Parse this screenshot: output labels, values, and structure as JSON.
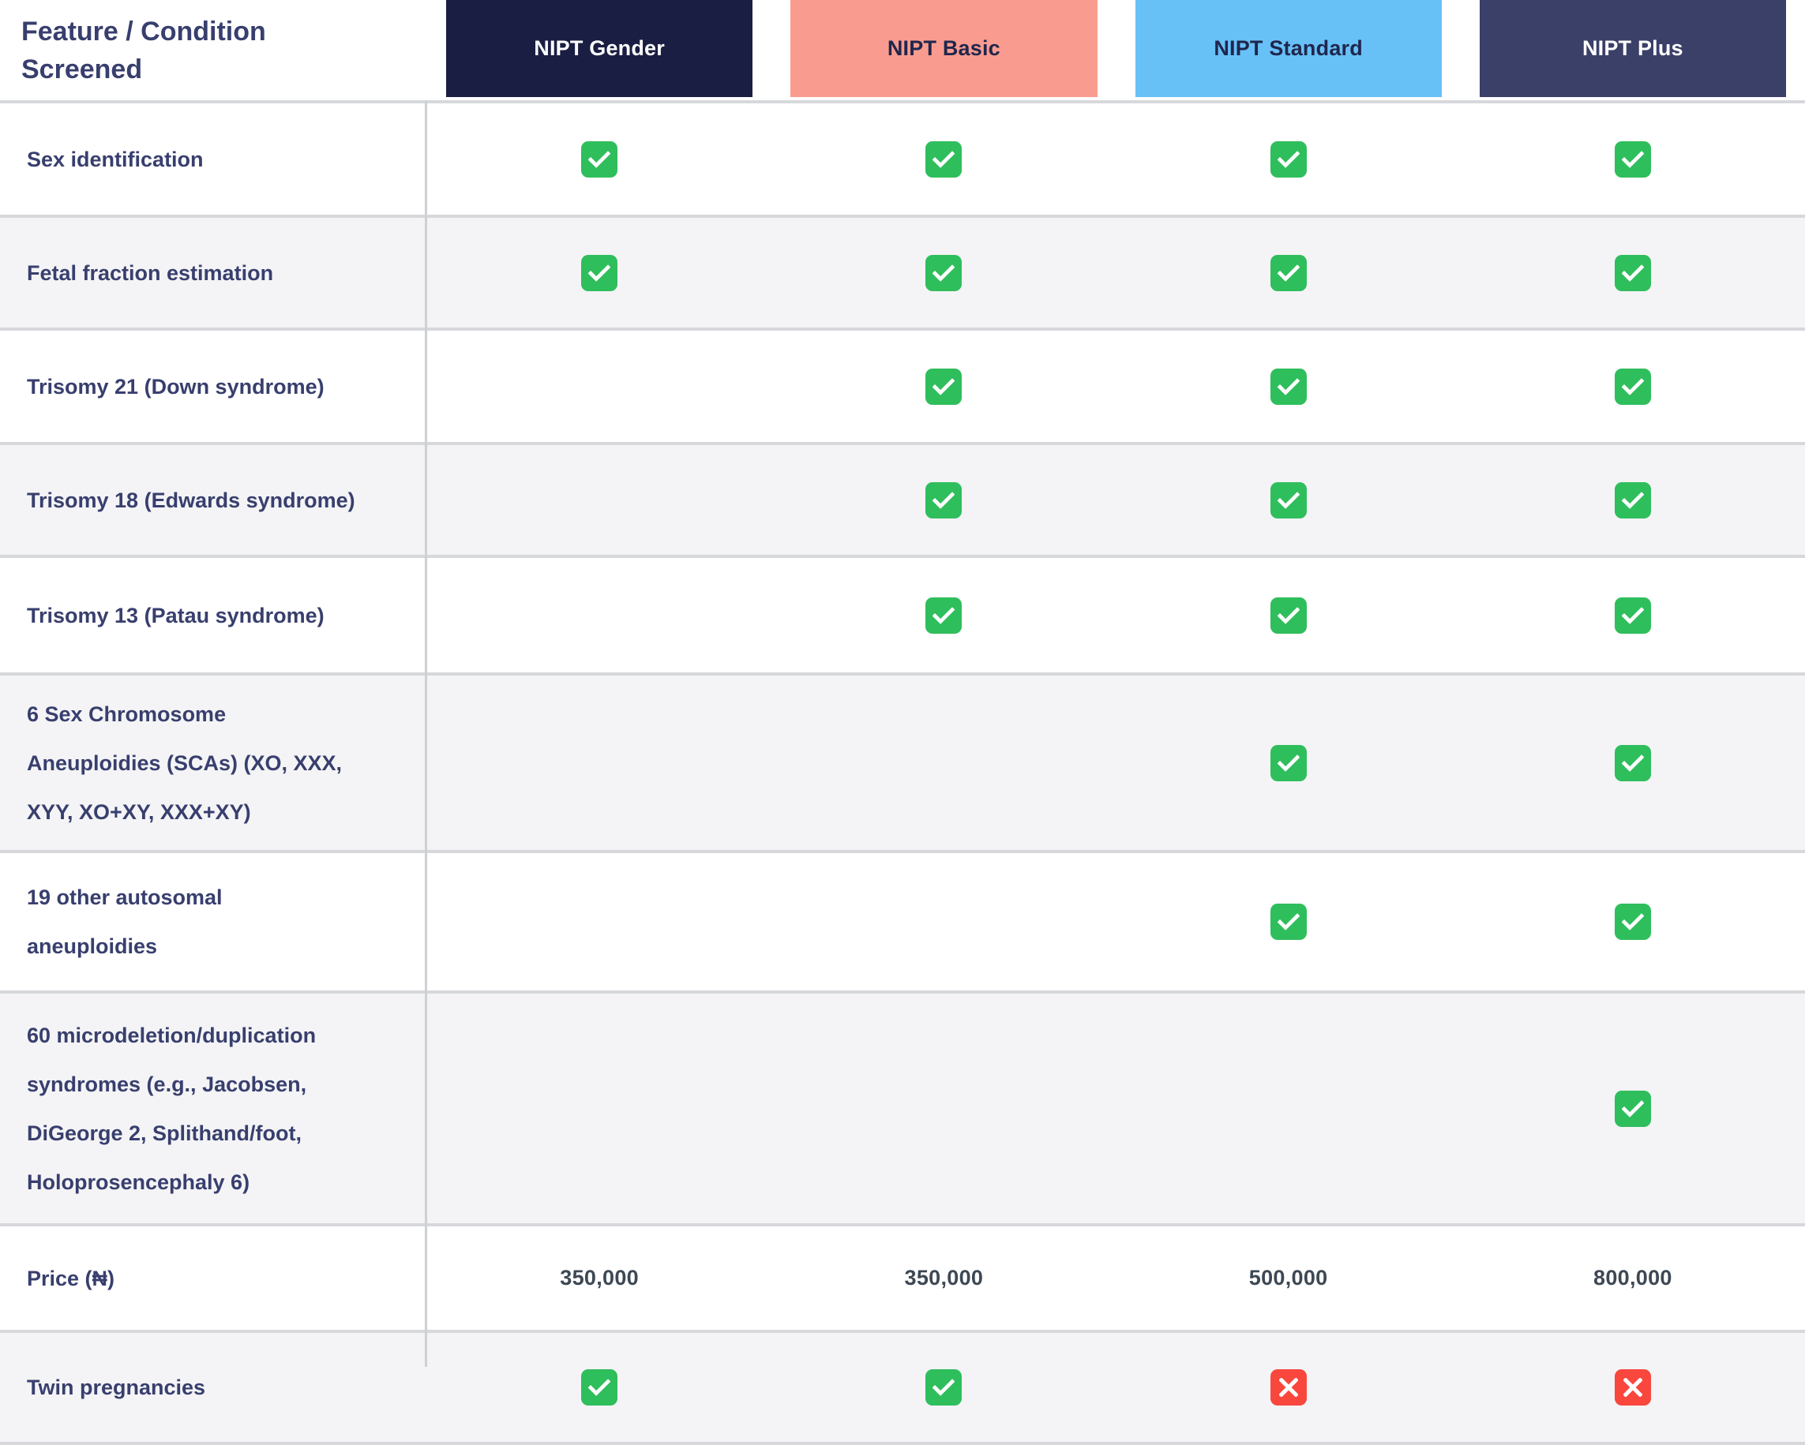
{
  "header": {
    "feature_label": "Feature / Condition\nScreened",
    "columns": [
      {
        "label": "NIPT Gender",
        "bg": "#1a1e42",
        "fg": "#ffffff"
      },
      {
        "label": "NIPT Basic",
        "bg": "#f99c8f",
        "fg": "#20264d"
      },
      {
        "label": "NIPT Standard",
        "bg": "#67c1f7",
        "fg": "#20264d"
      },
      {
        "label": "NIPT Plus",
        "bg": "#3b4069",
        "fg": "#ffffff"
      }
    ]
  },
  "table": {
    "rows": [
      {
        "label": "Sex identification",
        "cells": [
          "check",
          "check",
          "check",
          "check"
        ]
      },
      {
        "label": "Fetal fraction estimation",
        "cells": [
          "check",
          "check",
          "check",
          "check"
        ]
      },
      {
        "label": "Trisomy 21 (Down syndrome)",
        "cells": [
          "",
          "check",
          "check",
          "check"
        ]
      },
      {
        "label": "Trisomy 18 (Edwards syndrome)",
        "cells": [
          "",
          "check",
          "check",
          "check"
        ]
      },
      {
        "label": "Trisomy 13 (Patau syndrome)",
        "cells": [
          "",
          "check",
          "check",
          "check"
        ]
      },
      {
        "label": "6 Sex Chromosome\nAneuploidies (SCAs) (XO, XXX,\nXYY, XO+XY, XXX+XY)",
        "cells": [
          "",
          "",
          "check",
          "check"
        ]
      },
      {
        "label": "19 other autosomal\naneuploidies",
        "cells": [
          "",
          "",
          "check",
          "check"
        ]
      },
      {
        "label": "60 microdeletion/duplication\nsyndromes (e.g., Jacobsen,\nDiGeorge 2, Splithand/foot,\nHoloprosencephaly 6)",
        "cells": [
          "",
          "",
          "",
          "check"
        ]
      },
      {
        "label": "Price (₦)",
        "cells": [
          "350,000",
          "350,000",
          "500,000",
          "800,000"
        ]
      },
      {
        "label": "Twin pregnancies",
        "cells": [
          "check",
          "check",
          "cross",
          "cross"
        ]
      }
    ]
  },
  "colors": {
    "navy_text": "#383f6e",
    "price_text": "#3d4854",
    "check_green": "#2fbe5c",
    "cross_red": "#f9473e",
    "stripe_gray": "#f4f4f6",
    "separator_gray": "#d6d8db",
    "divider_gray": "#cdd0d4"
  },
  "chart_data": {
    "type": "table",
    "title": "Feature / Condition Screened",
    "columns": [
      "NIPT Gender",
      "NIPT Basic",
      "NIPT Standard",
      "NIPT Plus"
    ],
    "rows": [
      {
        "feature": "Sex identification",
        "values": [
          true,
          true,
          true,
          true
        ]
      },
      {
        "feature": "Fetal fraction estimation",
        "values": [
          true,
          true,
          true,
          true
        ]
      },
      {
        "feature": "Trisomy 21 (Down syndrome)",
        "values": [
          null,
          true,
          true,
          true
        ]
      },
      {
        "feature": "Trisomy 18 (Edwards syndrome)",
        "values": [
          null,
          true,
          true,
          true
        ]
      },
      {
        "feature": "Trisomy 13 (Patau syndrome)",
        "values": [
          null,
          true,
          true,
          true
        ]
      },
      {
        "feature": "6 Sex Chromosome Aneuploidies (SCAs) (XO, XXX, XYY, XO+XY, XXX+XY)",
        "values": [
          null,
          null,
          true,
          true
        ]
      },
      {
        "feature": "19 other autosomal aneuploidies",
        "values": [
          null,
          null,
          true,
          true
        ]
      },
      {
        "feature": "60 microdeletion/duplication syndromes (e.g., Jacobsen, DiGeorge 2, Splithand/foot, Holoprosencephaly 6)",
        "values": [
          null,
          null,
          null,
          true
        ]
      },
      {
        "feature": "Price (₦)",
        "values": [
          "350,000",
          "350,000",
          "500,000",
          "800,000"
        ]
      },
      {
        "feature": "Twin pregnancies",
        "values": [
          true,
          true,
          false,
          false
        ]
      }
    ]
  }
}
